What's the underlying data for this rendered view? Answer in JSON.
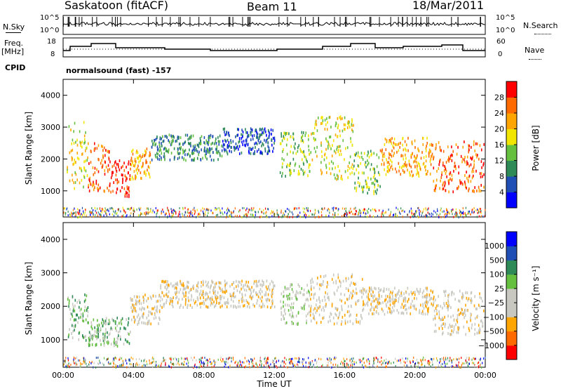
{
  "header": {
    "station": "Saskatoon (fitACF)",
    "beam": "Beam 11",
    "date": "18/Mar/2011"
  },
  "status_panels": {
    "nsky_label": "N.Sky",
    "nsky_ticks": [
      "10^5",
      "10^0"
    ],
    "nsearch_label": "N.Search",
    "freq_label_line1": "Freq.",
    "freq_label_line2": "[MHz]",
    "freq_ticks": [
      "18",
      "8"
    ],
    "nave_label": "Nave",
    "nave_ticks": [
      "60",
      "0"
    ],
    "cpid_label": "CPID",
    "cpid_value": "normalsound (fast) -157"
  },
  "chart_data": [
    {
      "type": "heatmap",
      "name": "power",
      "xlabel": "Time UT",
      "ylabel": "Slant Range [km]",
      "xlim": [
        0,
        24
      ],
      "ylim": [
        180,
        4500
      ],
      "x_ticks": [
        "00:00",
        "04:00",
        "08:00",
        "12:00",
        "16:00",
        "20:00",
        "00:00"
      ],
      "y_ticks": [
        1000,
        2000,
        3000,
        4000
      ],
      "colorbar": {
        "label": "Power [dB]",
        "ticks": [
          "28",
          "24",
          "20",
          "16",
          "12",
          "8",
          "4"
        ],
        "colors": [
          "#0000ff",
          "#1f4fb4",
          "#2e8b57",
          "#66c040",
          "#f2e600",
          "#ffa500",
          "#ff6a00",
          "#ff0000"
        ]
      },
      "regions": [
        {
          "t0": 0.2,
          "t1": 1.4,
          "r0": 1100,
          "r1": 3200,
          "level": 4
        },
        {
          "t0": 1.4,
          "t1": 2.6,
          "r0": 1000,
          "r1": 2600,
          "level": 6
        },
        {
          "t0": 2.6,
          "t1": 3.8,
          "r0": 850,
          "r1": 2000,
          "level": 7
        },
        {
          "t0": 3.8,
          "t1": 5.0,
          "r0": 1400,
          "r1": 2400,
          "level": 5
        },
        {
          "t0": 5.0,
          "t1": 9.0,
          "r0": 2000,
          "r1": 2800,
          "level": 2
        },
        {
          "t0": 9.0,
          "t1": 12.0,
          "r0": 2200,
          "r1": 3000,
          "level": 1
        },
        {
          "t0": 12.3,
          "t1": 14.0,
          "r0": 1500,
          "r1": 2900,
          "level": 3
        },
        {
          "t0": 14.0,
          "t1": 16.5,
          "r0": 1400,
          "r1": 3400,
          "level": 4
        },
        {
          "t0": 16.5,
          "t1": 18.0,
          "r0": 900,
          "r1": 2300,
          "level": 3
        },
        {
          "t0": 18.0,
          "t1": 21.0,
          "r0": 1500,
          "r1": 2700,
          "level": 5
        },
        {
          "t0": 21.0,
          "t1": 23.9,
          "r0": 1000,
          "r1": 2600,
          "level": 6
        }
      ]
    },
    {
      "type": "heatmap",
      "name": "velocity",
      "xlabel": "Time UT",
      "ylabel": "Slant Range [km]",
      "xlim": [
        0,
        24
      ],
      "ylim": [
        180,
        4500
      ],
      "x_ticks": [
        "00:00",
        "04:00",
        "08:00",
        "12:00",
        "16:00",
        "20:00",
        "00:00"
      ],
      "y_ticks": [
        1000,
        2000,
        3000,
        4000
      ],
      "colorbar": {
        "label": "Velocity [m s⁻¹]",
        "ticks": [
          "1000",
          "500",
          "100",
          "25",
          "−25",
          "−100",
          "−500",
          "−1000"
        ],
        "colors": [
          "#ff0000",
          "#ff6a00",
          "#ffa500",
          "#c8c8c0",
          "#c8c8c0",
          "#66c040",
          "#2e8b57",
          "#1f4fb4",
          "#0000ff"
        ]
      },
      "regions": [
        {
          "t0": 0.2,
          "t1": 1.4,
          "r0": 1000,
          "r1": 2400,
          "level": 5
        },
        {
          "t0": 1.4,
          "t1": 3.8,
          "r0": 850,
          "r1": 1700,
          "level": 5
        },
        {
          "t0": 3.8,
          "t1": 5.5,
          "r0": 1500,
          "r1": 2400,
          "level": 3
        },
        {
          "t0": 5.5,
          "t1": 12.0,
          "r0": 2000,
          "r1": 2800,
          "level": 3
        },
        {
          "t0": 12.3,
          "t1": 14.0,
          "r0": 1500,
          "r1": 2700,
          "level": 4
        },
        {
          "t0": 14.0,
          "t1": 17.0,
          "r0": 1500,
          "r1": 3000,
          "level": 3
        },
        {
          "t0": 17.0,
          "t1": 21.0,
          "r0": 1800,
          "r1": 2600,
          "level": 3
        },
        {
          "t0": 21.0,
          "t1": 23.9,
          "r0": 1200,
          "r1": 2500,
          "level": 3
        }
      ]
    }
  ]
}
